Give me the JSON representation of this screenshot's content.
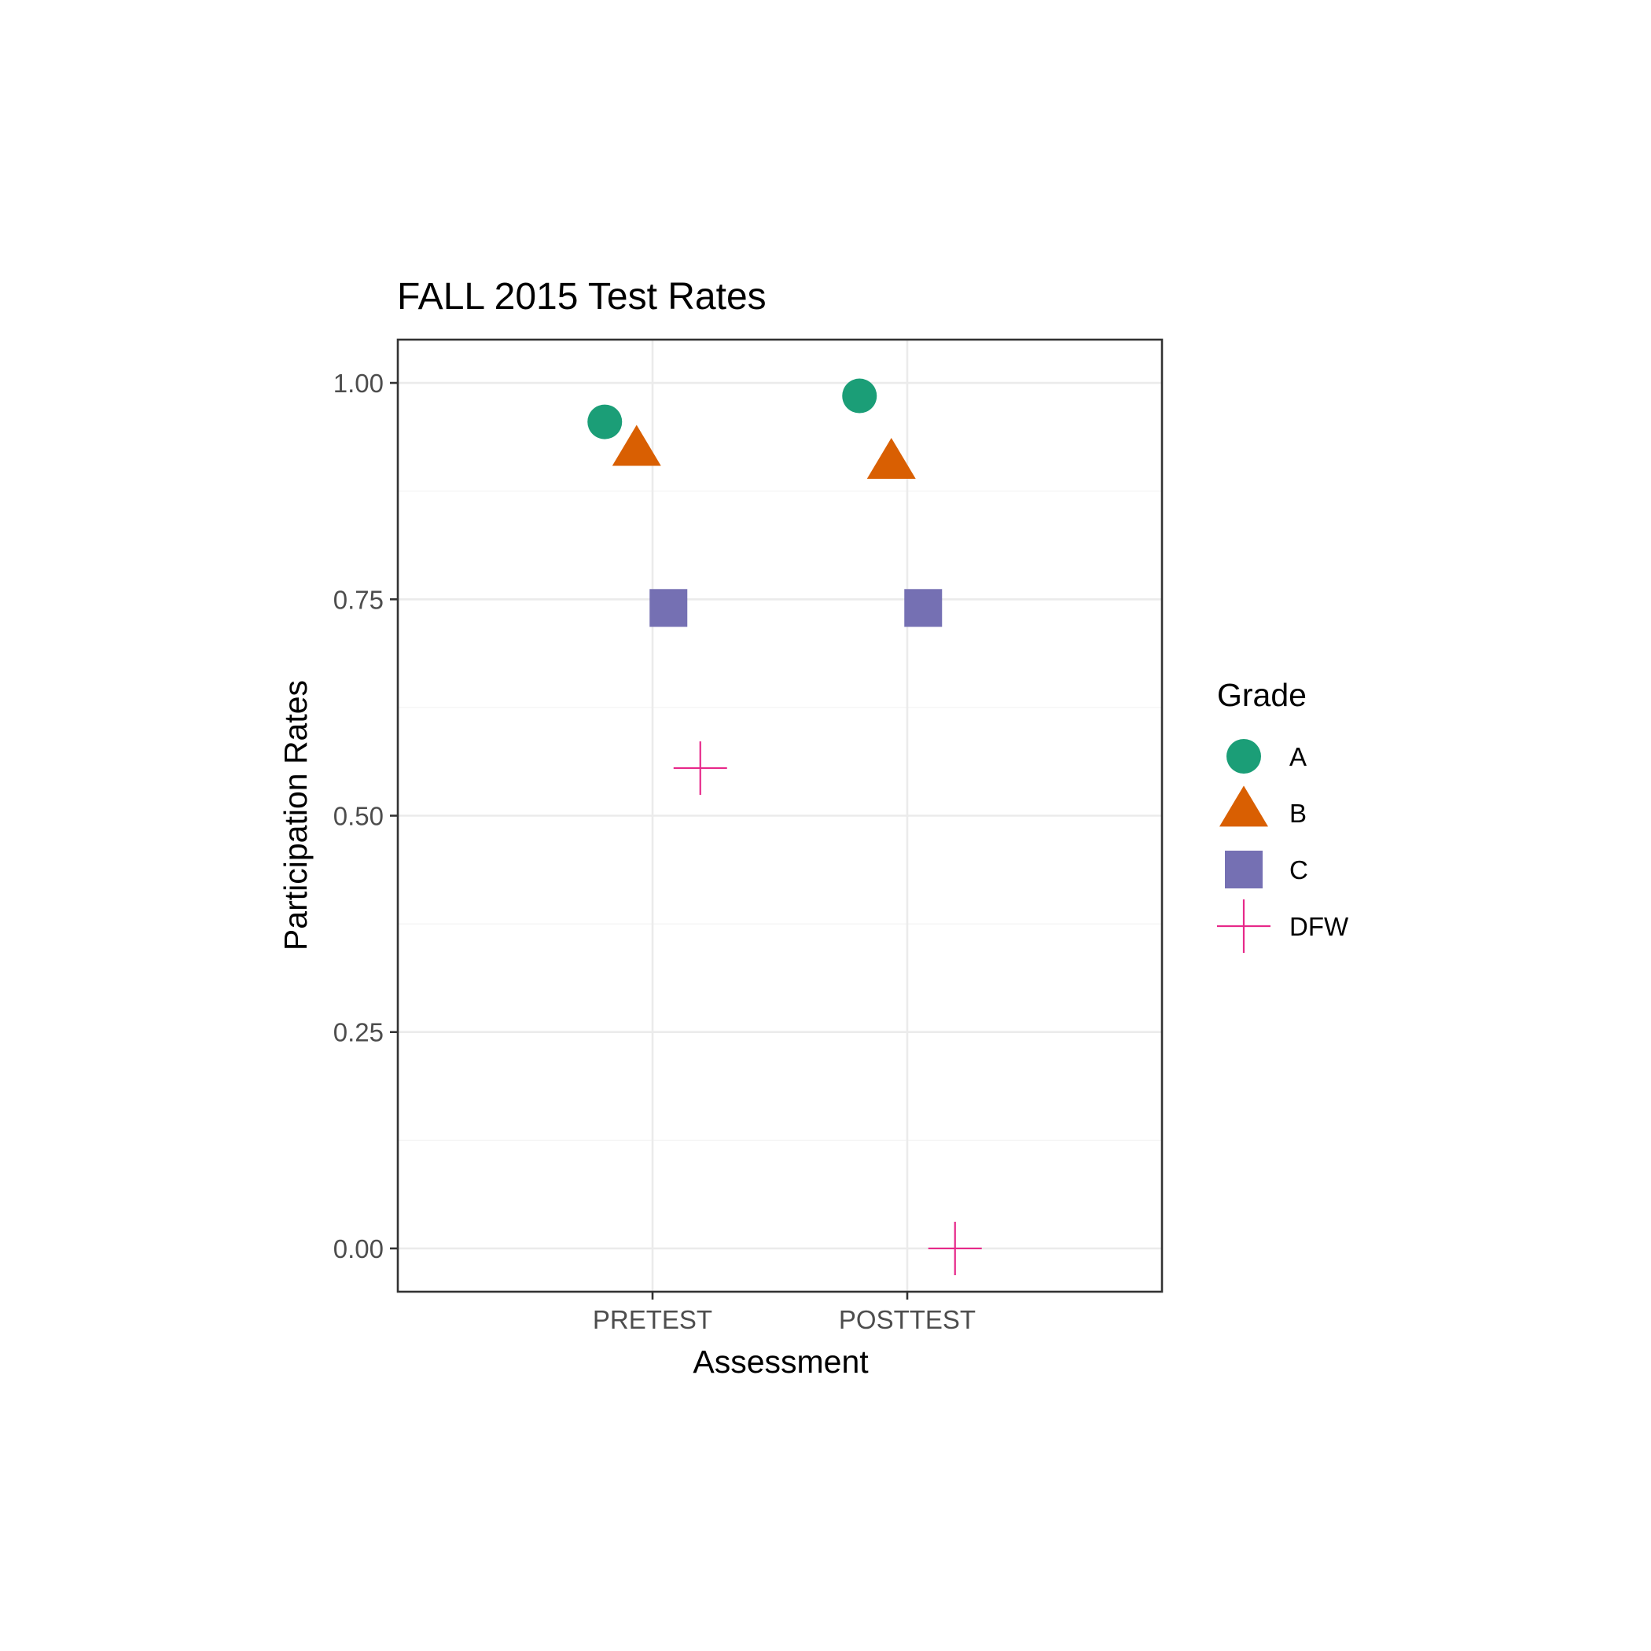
{
  "chart_data": {
    "type": "scatter",
    "title": "FALL 2015 Test Rates",
    "xlabel": "Assessment",
    "ylabel": "Participation Rates",
    "categories": [
      "PRETEST",
      "POSTTEST"
    ],
    "ylim": [
      -0.05,
      1.05
    ],
    "y_ticks": [
      "0.00",
      "0.25",
      "0.50",
      "0.75",
      "1.00"
    ],
    "grid": true,
    "legend": {
      "title": "Grade",
      "position": "right"
    },
    "series": [
      {
        "name": "A",
        "shape": "circle",
        "color": "#1b9e77",
        "values": [
          0.955,
          0.985
        ]
      },
      {
        "name": "B",
        "shape": "triangle",
        "color": "#d95f02",
        "values": [
          0.92,
          0.905
        ]
      },
      {
        "name": "C",
        "shape": "square",
        "color": "#7570b3",
        "values": [
          0.74,
          0.74
        ]
      },
      {
        "name": "DFW",
        "shape": "cross",
        "color": "#e7298a",
        "values": [
          0.555,
          0.0
        ]
      }
    ]
  }
}
